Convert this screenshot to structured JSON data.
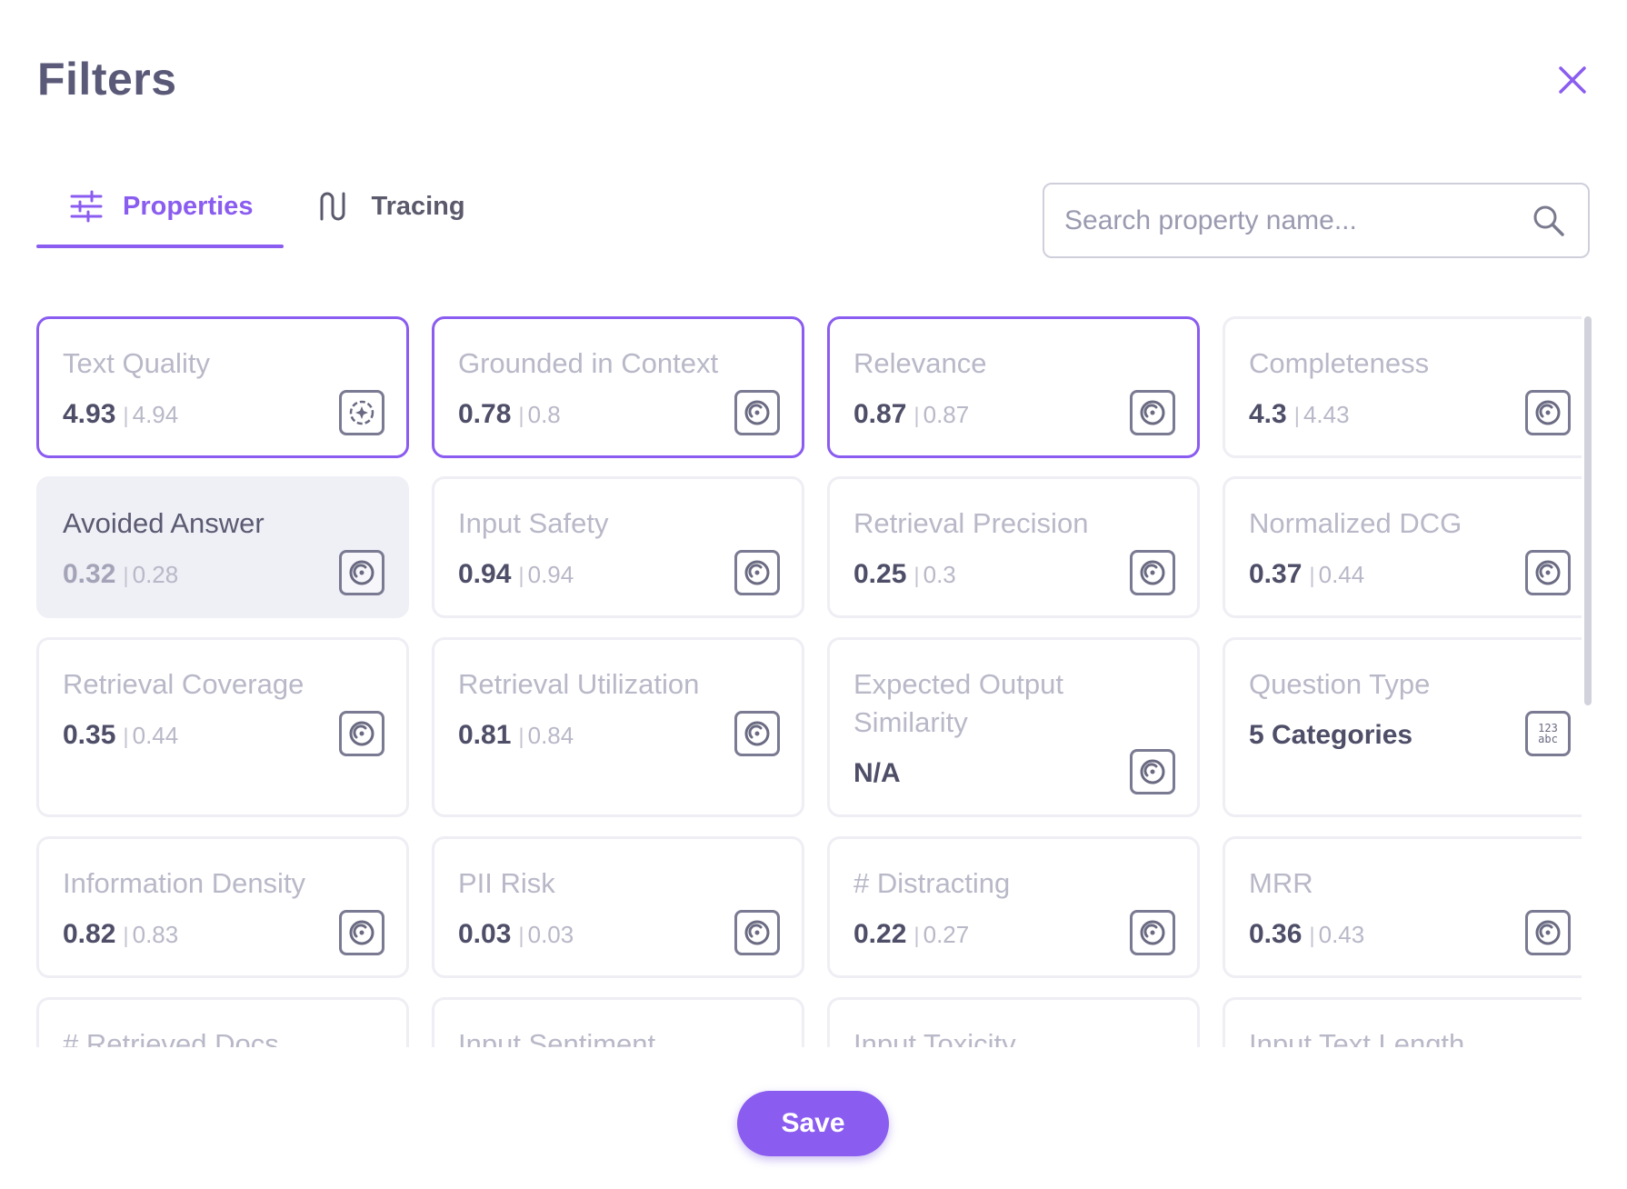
{
  "dialog": {
    "title": "Filters",
    "close_icon": "close-icon",
    "accent_color": "#8a5cf0"
  },
  "tabs": [
    {
      "label": "Properties",
      "icon": "sliders-icon",
      "active": true
    },
    {
      "label": "Tracing",
      "icon": "trace-path-icon",
      "active": false
    }
  ],
  "search": {
    "placeholder": "Search property name...",
    "value": "",
    "icon": "search-icon"
  },
  "cards": [
    {
      "name": "Text Quality",
      "value": "4.93",
      "secondary": "4.94",
      "icon": "llm-sparkle-icon",
      "selected": true
    },
    {
      "name": "Grounded in Context",
      "value": "0.78",
      "secondary": "0.8",
      "icon": "numeric-property-icon",
      "selected": true
    },
    {
      "name": "Relevance",
      "value": "0.87",
      "secondary": "0.87",
      "icon": "numeric-property-icon",
      "selected": true
    },
    {
      "name": "Completeness",
      "value": "4.3",
      "secondary": "4.43",
      "icon": "numeric-property-icon",
      "selected": false
    },
    {
      "name": "Avoided Answer",
      "value": "0.32",
      "secondary": "0.28",
      "icon": "numeric-property-icon",
      "selected": false,
      "hovered": true
    },
    {
      "name": "Input Safety",
      "value": "0.94",
      "secondary": "0.94",
      "icon": "numeric-property-icon",
      "selected": false
    },
    {
      "name": "Retrieval Precision",
      "value": "0.25",
      "secondary": "0.3",
      "icon": "numeric-property-icon",
      "selected": false
    },
    {
      "name": "Normalized DCG",
      "value": "0.37",
      "secondary": "0.44",
      "icon": "numeric-property-icon",
      "selected": false
    },
    {
      "name": "Retrieval Coverage",
      "value": "0.35",
      "secondary": "0.44",
      "icon": "numeric-property-icon",
      "selected": false
    },
    {
      "name": "Retrieval Utilization",
      "value": "0.81",
      "secondary": "0.84",
      "icon": "numeric-property-icon",
      "selected": false
    },
    {
      "name": "Expected Output Similarity",
      "value": "N/A",
      "secondary": "",
      "icon": "numeric-property-icon",
      "selected": false
    },
    {
      "name": "Question Type",
      "value": "5 Categories",
      "secondary": "",
      "icon": "categorical-123-abc-icon",
      "selected": false
    },
    {
      "name": "Information Density",
      "value": "0.82",
      "secondary": "0.83",
      "icon": "numeric-property-icon",
      "selected": false
    },
    {
      "name": "PII Risk",
      "value": "0.03",
      "secondary": "0.03",
      "icon": "numeric-property-icon",
      "selected": false
    },
    {
      "name": "# Distracting",
      "value": "0.22",
      "secondary": "0.27",
      "icon": "numeric-property-icon",
      "selected": false
    },
    {
      "name": "MRR",
      "value": "0.36",
      "secondary": "0.43",
      "icon": "numeric-property-icon",
      "selected": false
    },
    {
      "name": "# Retrieved Docs",
      "value": "",
      "secondary": "",
      "icon": "numeric-property-icon",
      "selected": false
    },
    {
      "name": "Input Sentiment",
      "value": "",
      "secondary": "",
      "icon": "numeric-property-icon",
      "selected": false
    },
    {
      "name": "Input Toxicity",
      "value": "",
      "secondary": "",
      "icon": "numeric-property-icon",
      "selected": false
    },
    {
      "name": "Input Text Length",
      "value": "",
      "secondary": "",
      "icon": "numeric-property-icon",
      "selected": false
    }
  ],
  "footer": {
    "save_label": "Save"
  }
}
